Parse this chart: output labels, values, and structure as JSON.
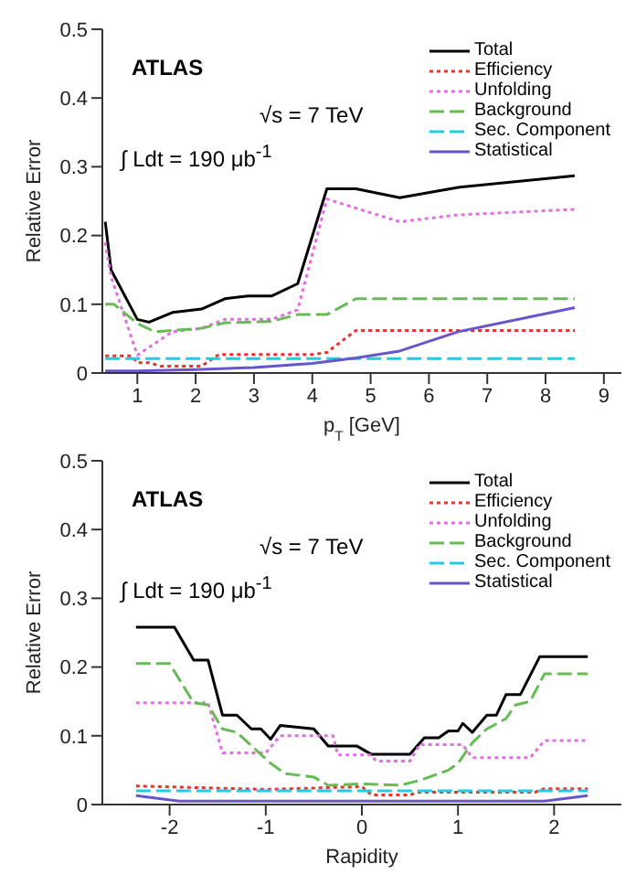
{
  "chart_data": [
    {
      "type": "line",
      "xlabel": "p$_{T}$ [GeV]",
      "ylabel": "Relative Error",
      "xlim": [
        0.4,
        9.3
      ],
      "xticks": [
        1,
        2,
        3,
        4,
        5,
        6,
        7,
        8,
        9
      ],
      "ylim": [
        0,
        0.5
      ],
      "yticks": [
        0,
        0.1,
        0.2,
        0.3,
        0.4,
        0.5
      ],
      "grid": false,
      "legend": "top right",
      "marker": "none",
      "annotations": [
        "ATLAS",
        "√s = 7 TeV",
        "∫ Ldt = 190 μb$^{-1}$"
      ],
      "series": [
        {
          "name": "Total",
          "color": "#000000",
          "line_style": "solid",
          "x": [
            0.45,
            0.55,
            1,
            1.2,
            1.6,
            2.1,
            2.5,
            2.9,
            3.3,
            3.75,
            4.25,
            4.75,
            5.5,
            6.5,
            8.5
          ],
          "values": [
            0.22,
            0.15,
            0.078,
            0.074,
            0.088,
            0.093,
            0.108,
            0.112,
            0.112,
            0.13,
            0.268,
            0.268,
            0.255,
            0.27,
            0.287
          ]
        },
        {
          "name": "Efficiency",
          "color": "#e8322b",
          "line_style": "dotted",
          "x": [
            0.45,
            0.9,
            1,
            1.2,
            1.4,
            2.1,
            2.4,
            4.0,
            4.25,
            4.75,
            8.5
          ],
          "values": [
            0.025,
            0.025,
            0.015,
            0.015,
            0.01,
            0.01,
            0.027,
            0.027,
            0.03,
            0.062,
            0.062
          ]
        },
        {
          "name": "Unfolding",
          "color": "#e070e0",
          "line_style": "dotted",
          "x": [
            0.45,
            0.55,
            1,
            1.6,
            2.1,
            2.5,
            3.3,
            3.75,
            4.25,
            5.5,
            6.5,
            8.5
          ],
          "values": [
            0.19,
            0.14,
            0.026,
            0.06,
            0.065,
            0.078,
            0.078,
            0.092,
            0.253,
            0.22,
            0.23,
            0.238
          ]
        },
        {
          "name": "Background",
          "color": "#66bb55",
          "line_style": "dashed",
          "x": [
            0.45,
            0.6,
            1,
            1.3,
            2.1,
            2.5,
            3.3,
            3.75,
            4.25,
            4.75,
            8.5
          ],
          "values": [
            0.1,
            0.1,
            0.072,
            0.06,
            0.065,
            0.073,
            0.075,
            0.085,
            0.085,
            0.108,
            0.108
          ]
        },
        {
          "name": "Sec. Component",
          "color": "#22ccdd",
          "line_style": "dashed",
          "x": [
            0.45,
            8.5
          ],
          "values": [
            0.021,
            0.021
          ]
        },
        {
          "name": "Statistical",
          "color": "#6655cc",
          "line_style": "solid",
          "x": [
            0.45,
            1,
            2,
            3,
            4,
            4.75,
            5.5,
            6.5,
            8.5
          ],
          "values": [
            0.003,
            0.003,
            0.005,
            0.008,
            0.014,
            0.022,
            0.032,
            0.06,
            0.095
          ]
        }
      ]
    },
    {
      "type": "line",
      "xlabel": "Rapidity",
      "ylabel": "Relative Error",
      "xlim": [
        -2.7,
        2.7
      ],
      "xticks": [
        -2,
        -1,
        0,
        1,
        2
      ],
      "ylim": [
        0,
        0.5
      ],
      "yticks": [
        0,
        0.1,
        0.2,
        0.3,
        0.4,
        0.5
      ],
      "grid": false,
      "legend": "top right",
      "marker": "none",
      "annotations": [
        "ATLAS",
        "√s = 7 TeV",
        "∫ Ldt = 190 μb$^{-1}$"
      ],
      "series": [
        {
          "name": "Total",
          "color": "#000000",
          "line_style": "solid",
          "x": [
            -2.35,
            -1.95,
            -1.75,
            -1.6,
            -1.45,
            -1.3,
            -1.15,
            -1.05,
            -0.95,
            -0.85,
            -0.5,
            -0.35,
            -0.05,
            0.1,
            0.5,
            0.65,
            0.8,
            0.9,
            1.0,
            1.05,
            1.15,
            1.3,
            1.4,
            1.5,
            1.65,
            1.85,
            2.35
          ],
          "values": [
            0.258,
            0.258,
            0.21,
            0.21,
            0.13,
            0.13,
            0.11,
            0.11,
            0.095,
            0.115,
            0.11,
            0.085,
            0.085,
            0.073,
            0.073,
            0.097,
            0.097,
            0.107,
            0.107,
            0.118,
            0.105,
            0.13,
            0.13,
            0.16,
            0.16,
            0.215,
            0.215
          ]
        },
        {
          "name": "Efficiency",
          "color": "#e8322b",
          "line_style": "dotted",
          "x": [
            -2.35,
            -1.0,
            0,
            0.1,
            0.5,
            0.6,
            1.8,
            1.9,
            2.35
          ],
          "values": [
            0.027,
            0.022,
            0.026,
            0.014,
            0.014,
            0.018,
            0.018,
            0.023,
            0.023
          ]
        },
        {
          "name": "Unfolding",
          "color": "#e070e0",
          "line_style": "dotted",
          "x": [
            -2.35,
            -1.6,
            -1.45,
            -1.0,
            -0.85,
            -0.3,
            -0.25,
            0.1,
            0.15,
            0.5,
            0.6,
            1.05,
            1.15,
            1.75,
            1.9,
            2.35
          ],
          "values": [
            0.148,
            0.148,
            0.075,
            0.075,
            0.1,
            0.1,
            0.072,
            0.072,
            0.063,
            0.063,
            0.087,
            0.087,
            0.068,
            0.068,
            0.093,
            0.093
          ]
        },
        {
          "name": "Background",
          "color": "#66bb55",
          "line_style": "dashed",
          "x": [
            -2.35,
            -2.0,
            -1.75,
            -1.6,
            -1.45,
            -1.3,
            -0.95,
            -0.8,
            -0.5,
            -0.35,
            0,
            0.4,
            0.6,
            0.9,
            1.0,
            1.15,
            1.3,
            1.5,
            1.6,
            1.75,
            1.9,
            2.35
          ],
          "values": [
            0.205,
            0.205,
            0.148,
            0.145,
            0.11,
            0.105,
            0.06,
            0.045,
            0.04,
            0.028,
            0.03,
            0.028,
            0.035,
            0.05,
            0.06,
            0.09,
            0.11,
            0.125,
            0.145,
            0.15,
            0.19,
            0.19
          ]
        },
        {
          "name": "Sec. Component",
          "color": "#22ccdd",
          "line_style": "dashed",
          "x": [
            -2.35,
            2.35
          ],
          "values": [
            0.02,
            0.02
          ]
        },
        {
          "name": "Statistical",
          "color": "#6655cc",
          "line_style": "solid",
          "x": [
            -2.35,
            -1.9,
            1.9,
            2.35
          ],
          "values": [
            0.013,
            0.005,
            0.005,
            0.013
          ]
        }
      ]
    }
  ]
}
